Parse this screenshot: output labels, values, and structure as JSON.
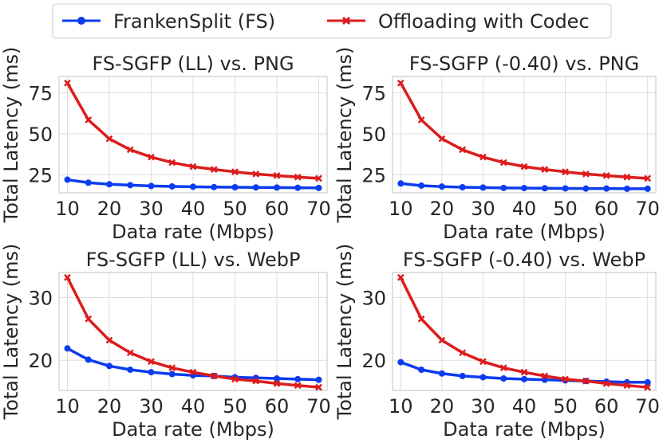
{
  "legend": {
    "series": [
      {
        "name": "FrankenSplit (FS)",
        "color": "#0b3cf0",
        "marker": "circle"
      },
      {
        "name": "Offloading with Codec",
        "color": "#dc1c1c",
        "marker": "x"
      }
    ]
  },
  "chart_data": [
    {
      "type": "line",
      "title": "FS-SGFP (LL) vs. PNG",
      "xlabel": "Data rate (Mbps)",
      "ylabel": "Total Latency (ms)",
      "x": [
        10,
        15,
        20,
        25,
        30,
        35,
        40,
        45,
        50,
        55,
        60,
        65,
        70
      ],
      "xticks": [
        10,
        20,
        30,
        40,
        50,
        60,
        70
      ],
      "yticks": [
        25,
        50,
        75
      ],
      "xlim": [
        8,
        72
      ],
      "ylim": [
        14,
        85
      ],
      "series": [
        {
          "name": "FrankenSplit (FS)",
          "values": [
            22.0,
            20.2,
            19.2,
            18.7,
            18.2,
            17.9,
            17.7,
            17.5,
            17.4,
            17.3,
            17.2,
            17.1,
            17.0
          ]
        },
        {
          "name": "Offloading with Codec",
          "values": [
            81.0,
            58.5,
            47.0,
            40.3,
            35.8,
            32.5,
            30.0,
            28.3,
            26.8,
            25.5,
            24.5,
            23.6,
            22.8
          ]
        }
      ]
    },
    {
      "type": "line",
      "title": "FS-SGFP (-0.40) vs. PNG",
      "xlabel": "Data rate (Mbps)",
      "ylabel": "Total Latency (ms)",
      "x": [
        10,
        15,
        20,
        25,
        30,
        35,
        40,
        45,
        50,
        55,
        60,
        65,
        70
      ],
      "xticks": [
        10,
        20,
        30,
        40,
        50,
        60,
        70
      ],
      "yticks": [
        25,
        50,
        75
      ],
      "xlim": [
        8,
        72
      ],
      "ylim": [
        14,
        85
      ],
      "series": [
        {
          "name": "FrankenSplit (FS)",
          "values": [
            19.7,
            18.4,
            17.8,
            17.4,
            17.2,
            17.0,
            16.9,
            16.8,
            16.7,
            16.6,
            16.6,
            16.5,
            16.5
          ]
        },
        {
          "name": "Offloading with Codec",
          "values": [
            81.0,
            58.5,
            47.0,
            40.3,
            35.8,
            32.5,
            30.0,
            28.3,
            26.8,
            25.5,
            24.5,
            23.6,
            22.8
          ]
        }
      ]
    },
    {
      "type": "line",
      "title": "FS-SGFP (LL) vs. WebP",
      "xlabel": "Data rate (Mbps)",
      "ylabel": "Total Latency (ms)",
      "x": [
        10,
        15,
        20,
        25,
        30,
        35,
        40,
        45,
        50,
        55,
        60,
        65,
        70
      ],
      "xticks": [
        10,
        20,
        30,
        40,
        50,
        60,
        70
      ],
      "yticks": [
        20,
        30
      ],
      "xlim": [
        8,
        72
      ],
      "ylim": [
        15.2,
        34.0
      ],
      "series": [
        {
          "name": "FrankenSplit (FS)",
          "values": [
            21.9,
            20.1,
            19.1,
            18.5,
            18.1,
            17.8,
            17.6,
            17.5,
            17.3,
            17.2,
            17.1,
            17.0,
            16.9
          ]
        },
        {
          "name": "Offloading with Codec",
          "values": [
            33.2,
            26.6,
            23.2,
            21.2,
            19.8,
            18.8,
            18.1,
            17.5,
            17.0,
            16.7,
            16.3,
            16.0,
            15.7
          ]
        }
      ]
    },
    {
      "type": "line",
      "title": "FS-SGFP (-0.40) vs. WebP",
      "xlabel": "Data rate (Mbps)",
      "ylabel": "Total Latency (ms)",
      "x": [
        10,
        15,
        20,
        25,
        30,
        35,
        40,
        45,
        50,
        55,
        60,
        65,
        70
      ],
      "xticks": [
        10,
        20,
        30,
        40,
        50,
        60,
        70
      ],
      "yticks": [
        20,
        30
      ],
      "xlim": [
        8,
        72
      ],
      "ylim": [
        15.2,
        34.0
      ],
      "series": [
        {
          "name": "FrankenSplit (FS)",
          "values": [
            19.7,
            18.5,
            17.9,
            17.5,
            17.3,
            17.1,
            17.0,
            16.9,
            16.8,
            16.7,
            16.6,
            16.5,
            16.5
          ]
        },
        {
          "name": "Offloading with Codec",
          "values": [
            33.2,
            26.6,
            23.2,
            21.2,
            19.8,
            18.8,
            18.1,
            17.5,
            17.0,
            16.7,
            16.3,
            16.0,
            15.7
          ]
        }
      ]
    }
  ]
}
